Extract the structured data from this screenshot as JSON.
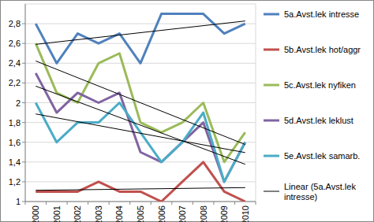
{
  "chart_data": {
    "type": "line",
    "categories": [
      "2000",
      "2001",
      "2002",
      "2003",
      "2004",
      "2005",
      "2006",
      "2007",
      "2008",
      "2009",
      "2010"
    ],
    "series": [
      {
        "name": "5a.Avst.lek intresse",
        "color": "#4f81bd",
        "values": [
          2.8,
          2.4,
          2.7,
          2.6,
          2.7,
          2.4,
          2.9,
          2.9,
          2.9,
          2.7,
          2.8
        ]
      },
      {
        "name": "5b.Avst.lek hot/aggr",
        "color": "#c0504d",
        "values": [
          1.1,
          1.1,
          1.1,
          1.2,
          1.1,
          1.1,
          1.0,
          1.2,
          1.4,
          1.1,
          1.0
        ]
      },
      {
        "name": "5c.Avst.lek nyfiken",
        "color": "#9bbb59",
        "values": [
          2.6,
          2.1,
          2.0,
          2.4,
          2.5,
          1.8,
          1.7,
          1.8,
          2.0,
          1.4,
          1.7
        ]
      },
      {
        "name": "5d.Avst.lek leklust",
        "color": "#8064a2",
        "values": [
          2.3,
          1.9,
          2.1,
          2.0,
          2.1,
          1.5,
          1.4,
          1.6,
          1.8,
          1.2,
          1.6
        ]
      },
      {
        "name": "5e.Avst.lek samarb.",
        "color": "#4bacc6",
        "values": [
          2.0,
          1.6,
          1.8,
          1.8,
          2.0,
          1.7,
          1.4,
          1.6,
          1.9,
          1.2,
          1.6
        ]
      }
    ],
    "trendline_legend": "Linear (5a.Avst.lek intresse)",
    "ylim": [
      1,
      3
    ],
    "yticks": [
      1,
      {
        "value": 1.2,
        "label": "1,2"
      },
      {
        "value": 1.4,
        "label": "1,4"
      },
      {
        "value": 1.6,
        "label": "1,6"
      },
      {
        "value": 1.8,
        "label": "1,8"
      },
      2,
      {
        "value": 2.2,
        "label": "2,2"
      },
      {
        "value": 2.4,
        "label": "2,4"
      },
      {
        "value": 2.6,
        "label": "2,6"
      },
      {
        "value": 2.8,
        "label": "2,8"
      }
    ],
    "grid": true,
    "legend": "right"
  }
}
